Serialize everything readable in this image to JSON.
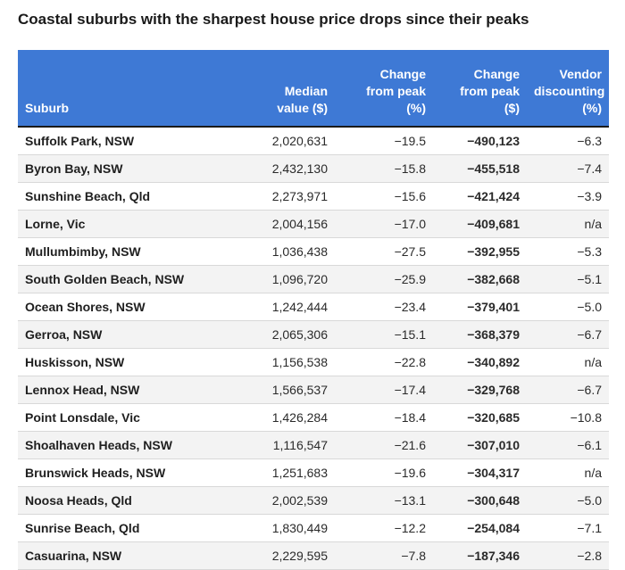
{
  "title": "Coastal suburbs with the sharpest house price drops since their peaks",
  "chart_data": {
    "type": "table",
    "title": "Coastal suburbs with the sharpest house price drops since their peaks",
    "columns": [
      "Suburb",
      "Median\nvalue ($)",
      "Change\nfrom peak\n(%)",
      "Change\nfrom peak\n($)",
      "Vendor\ndiscounting\n(%)"
    ],
    "rows": [
      [
        "Suffolk Park, NSW",
        "2,020,631",
        "−19.5",
        "−490,123",
        "−6.3"
      ],
      [
        "Byron Bay, NSW",
        "2,432,130",
        "−15.8",
        "−455,518",
        "−7.4"
      ],
      [
        "Sunshine Beach, Qld",
        "2,273,971",
        "−15.6",
        "−421,424",
        "−3.9"
      ],
      [
        "Lorne, Vic",
        "2,004,156",
        "−17.0",
        "−409,681",
        "n/a"
      ],
      [
        "Mullumbimby, NSW",
        "1,036,438",
        "−27.5",
        "−392,955",
        "−5.3"
      ],
      [
        "South Golden Beach, NSW",
        "1,096,720",
        "−25.9",
        "−382,668",
        "−5.1"
      ],
      [
        "Ocean Shores, NSW",
        "1,242,444",
        "−23.4",
        "−379,401",
        "−5.0"
      ],
      [
        "Gerroa, NSW",
        "2,065,306",
        "−15.1",
        "−368,379",
        "−6.7"
      ],
      [
        "Huskisson, NSW",
        "1,156,538",
        "−22.8",
        "−340,892",
        "n/a"
      ],
      [
        "Lennox Head, NSW",
        "1,566,537",
        "−17.4",
        "−329,768",
        "−6.7"
      ],
      [
        "Point Lonsdale, Vic",
        "1,426,284",
        "−18.4",
        "−320,685",
        "−10.8"
      ],
      [
        "Shoalhaven Heads, NSW",
        "1,116,547",
        "−21.6",
        "−307,010",
        "−6.1"
      ],
      [
        "Brunswick Heads, NSW",
        "1,251,683",
        "−19.6",
        "−304,317",
        "n/a"
      ],
      [
        "Noosa Heads, Qld",
        "2,002,539",
        "−13.1",
        "−300,648",
        "−5.0"
      ],
      [
        "Sunrise Beach, Qld",
        "1,830,449",
        "−12.2",
        "−254,084",
        "−7.1"
      ],
      [
        "Casuarina, NSW",
        "2,229,595",
        "−7.8",
        "−187,346",
        "−2.8"
      ]
    ],
    "header_color": "#3e79d5"
  }
}
